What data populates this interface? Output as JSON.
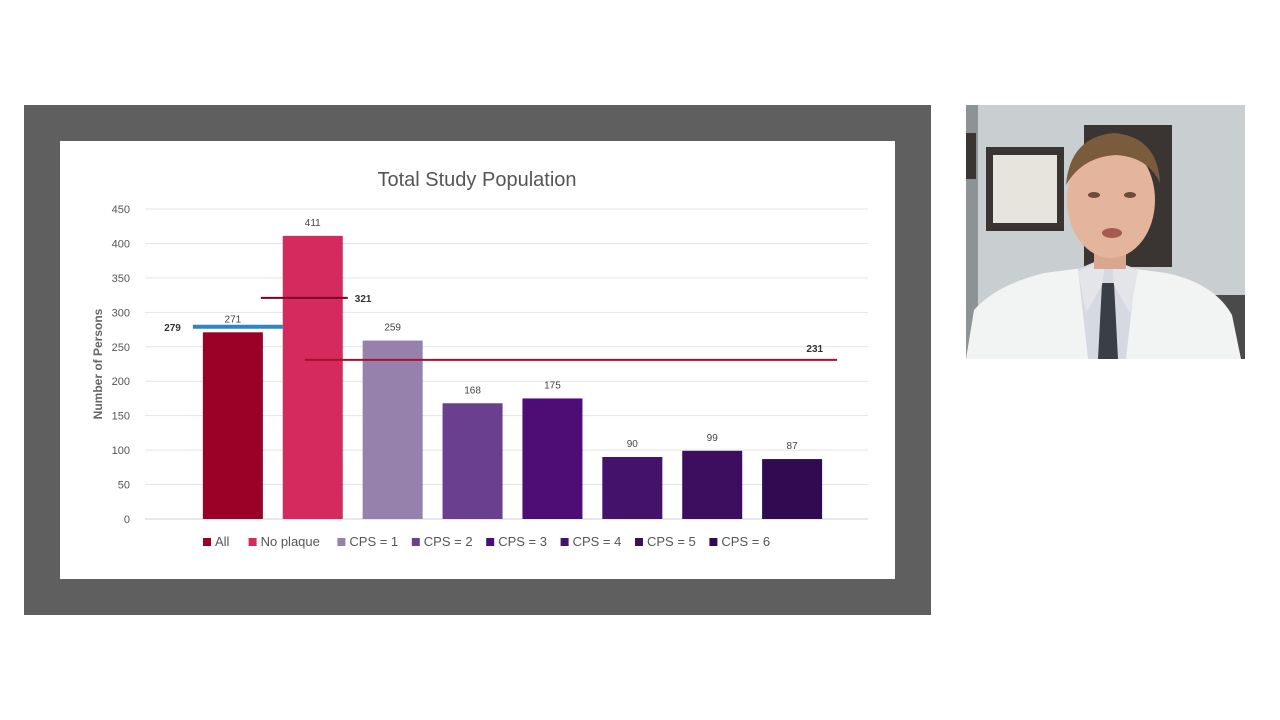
{
  "slide": {
    "chart_data": {
      "type": "bar",
      "title": "Total Study Population",
      "xlabel": "",
      "ylabel": "Number of Persons",
      "ylim": [
        0,
        450
      ],
      "yticks": [
        0,
        50,
        100,
        150,
        200,
        250,
        300,
        350,
        400,
        450
      ],
      "grid": true,
      "legend_position": "bottom",
      "categories": [
        "All",
        "No plaque",
        "CPS = 1",
        "CPS = 2",
        "CPS = 3",
        "CPS = 4",
        "CPS = 5",
        "CPS = 6"
      ],
      "values": [
        271,
        411,
        259,
        168,
        175,
        90,
        99,
        87
      ],
      "colors": [
        "#9b0026",
        "#d52a5e",
        "#9581ab",
        "#6a3f8f",
        "#4d0d75",
        "#44116b",
        "#3d0e60",
        "#310b51"
      ],
      "reference_lines": [
        {
          "value": 279,
          "label": "279",
          "color": "#2e86c1",
          "from_category": 0,
          "to_category": 0
        },
        {
          "value": 321,
          "label": "321",
          "color": "#7b0024",
          "from_category": 1,
          "to_category": 1
        },
        {
          "value": 231,
          "label": "231",
          "color": "#a8102e",
          "from_category": 2,
          "to_category": 7
        }
      ]
    }
  },
  "webcam": {
    "colors": {
      "wall": "#c9cfd0",
      "frame": "#3a3532",
      "coat": "#f2f3f3",
      "skin": "#e5b49c",
      "hair": "#7a5b3c",
      "shirt": "#d6d9e1",
      "tie": "#3a3f47"
    }
  }
}
